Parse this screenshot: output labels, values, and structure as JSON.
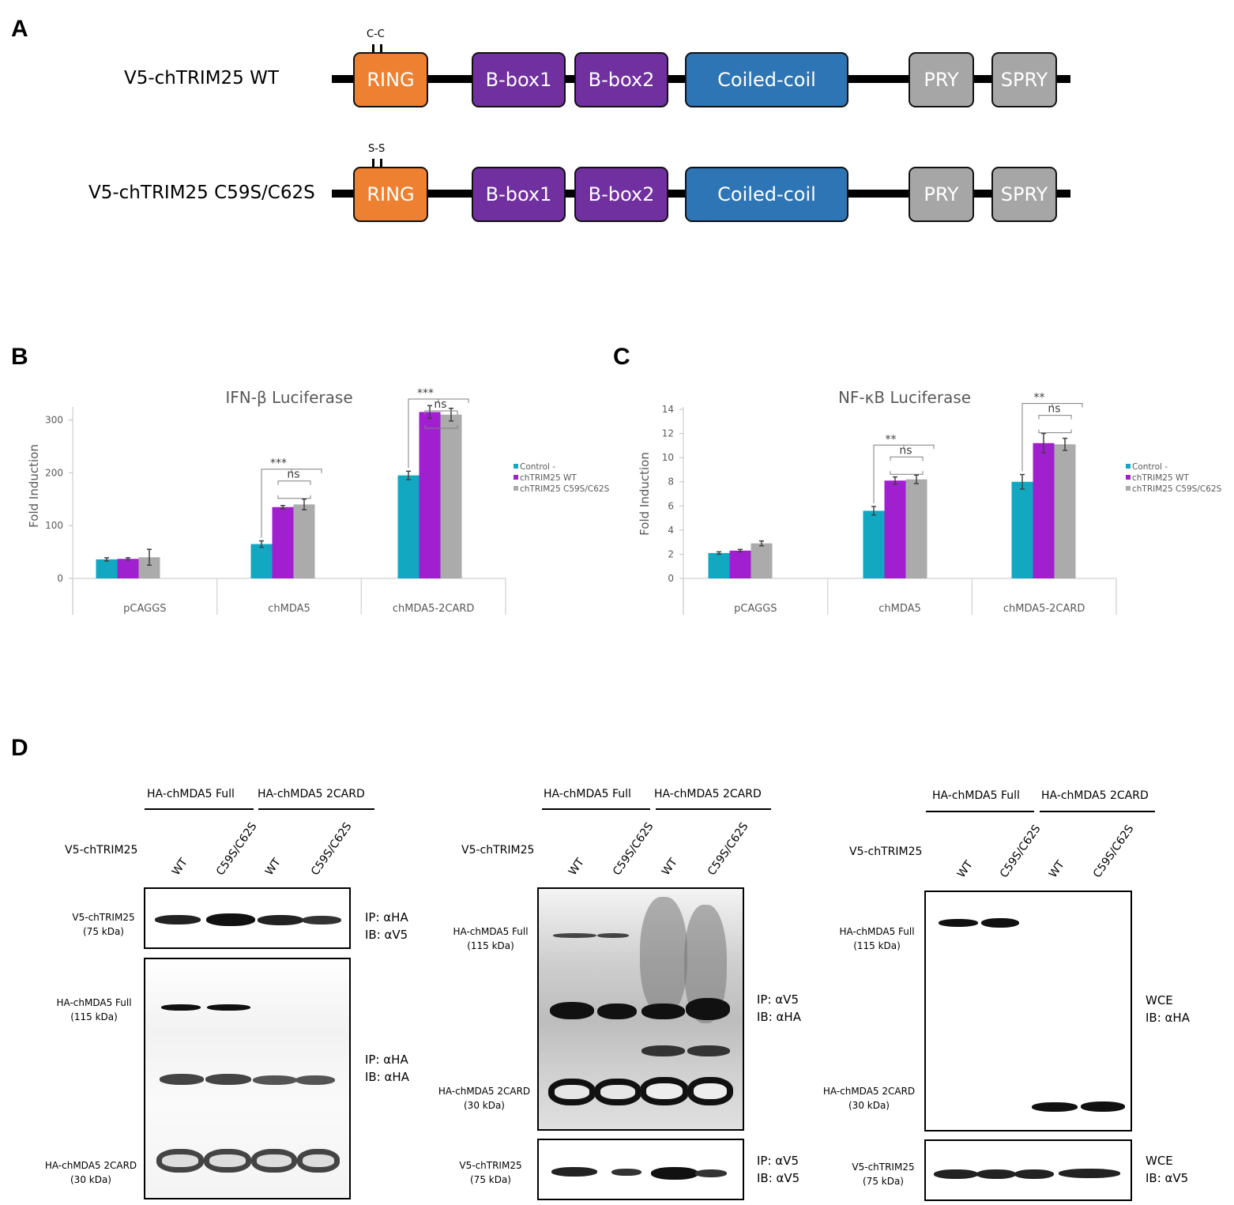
{
  "panelA": {
    "letter": "A",
    "constructs": [
      {
        "label": "V5-chTRIM25 WT",
        "mutation": "C-C"
      },
      {
        "label": "V5-chTRIM25 C59S/C62S",
        "mutation": "S-S"
      }
    ],
    "domains": [
      {
        "name": "RING",
        "color": "#ee8032"
      },
      {
        "name": "B-box1",
        "color": "#7030a0"
      },
      {
        "name": "B-box2",
        "color": "#7030a0"
      },
      {
        "name": "Coiled-coil",
        "color": "#2e75b6"
      },
      {
        "name": "PRY",
        "color": "#a6a6a6"
      },
      {
        "name": "SPRY",
        "color": "#a6a6a6"
      }
    ]
  },
  "panelB_letter": "B",
  "panelC_letter": "C",
  "panelD_letter": "D",
  "chart_data": [
    {
      "type": "bar",
      "title": "IFN-β Luciferase",
      "ylabel": "Fold Induction",
      "xlabel": "",
      "categories": [
        "pCAGGS",
        "chMDA5",
        "chMDA5-2CARD"
      ],
      "ylim": [
        0,
        350
      ],
      "yticks": [
        0,
        100,
        200,
        300
      ],
      "series": [
        {
          "name": "Control -",
          "color": "#12a8c2",
          "values": [
            36,
            65,
            195
          ],
          "errors": [
            3,
            6,
            8
          ]
        },
        {
          "name": "chTRIM25 WT",
          "color": "#a020d0",
          "values": [
            37,
            135,
            315
          ],
          "errors": [
            2,
            3,
            12
          ]
        },
        {
          "name": "chTRIM25 C59S/C62S",
          "color": "#ababab",
          "values": [
            40,
            140,
            310
          ],
          "errors": [
            15,
            10,
            12
          ]
        }
      ],
      "significance": [
        {
          "category": "chMDA5",
          "outer": "***",
          "inner": "ns"
        },
        {
          "category": "chMDA5-2CARD",
          "outer": "***",
          "inner": "ns"
        }
      ],
      "legend": "right"
    },
    {
      "type": "bar",
      "title": "NF-κB Luciferase",
      "ylabel": "Fold Induction",
      "xlabel": "",
      "categories": [
        "pCAGGS",
        "chMDA5",
        "chMDA5-2CARD"
      ],
      "ylim": [
        0,
        14
      ],
      "yticks": [
        0,
        2,
        4,
        6,
        8,
        10,
        12,
        14
      ],
      "series": [
        {
          "name": "Control -",
          "color": "#12a8c2",
          "values": [
            2.1,
            5.6,
            8.0
          ],
          "errors": [
            0.1,
            0.35,
            0.6
          ]
        },
        {
          "name": "chTRIM25 WT",
          "color": "#a020d0",
          "values": [
            2.3,
            8.1,
            11.2
          ],
          "errors": [
            0.1,
            0.3,
            0.8
          ]
        },
        {
          "name": "chTRIM25 C59S/C62S",
          "color": "#ababab",
          "values": [
            2.9,
            8.2,
            11.1
          ],
          "errors": [
            0.2,
            0.35,
            0.5
          ]
        }
      ],
      "significance": [
        {
          "category": "chMDA5",
          "outer": "**",
          "inner": "ns"
        },
        {
          "category": "chMDA5-2CARD",
          "outer": "**",
          "inner": "ns"
        }
      ],
      "legend": "right"
    }
  ],
  "panelD": {
    "group_full": "HA-chMDA5 Full",
    "group_2card": "HA-chMDA5 2CARD",
    "row_label": "V5-chTRIM25",
    "lanes": [
      "WT",
      "C59S/C62S",
      "WT",
      "C59S/C62S"
    ],
    "blot1": {
      "top_label": "V5-chTRIM25\n(75 kDa)",
      "top_ipib": "IP: αHA\nIB: αV5",
      "full_label": "HA-chMDA5 Full\n(115 kDa)",
      "card_label": "HA-chMDA5 2CARD\n(30 kDa)",
      "main_ipib": "IP: αHA\nIB: αHA"
    },
    "blot2": {
      "full_label": "HA-chMDA5 Full\n(115 kDa)",
      "card_label": "HA-chMDA5 2CARD\n(30 kDa)",
      "main_ipib": "IP: αV5\nIB: αHA",
      "bottom_label": "V5-chTRIM25\n(75 kDa)",
      "bottom_ipib": "IP: αV5\nIB: αV5"
    },
    "blot3": {
      "full_label": "HA-chMDA5 Full\n(115 kDa)",
      "card_label": "HA-chMDA5 2CARD\n(30 kDa)",
      "main_ipib": "WCE\nIB: αHA",
      "bottom_label": "V5-chTRIM25\n(75 kDa)",
      "bottom_ipib": "WCE\nIB: αV5"
    }
  }
}
